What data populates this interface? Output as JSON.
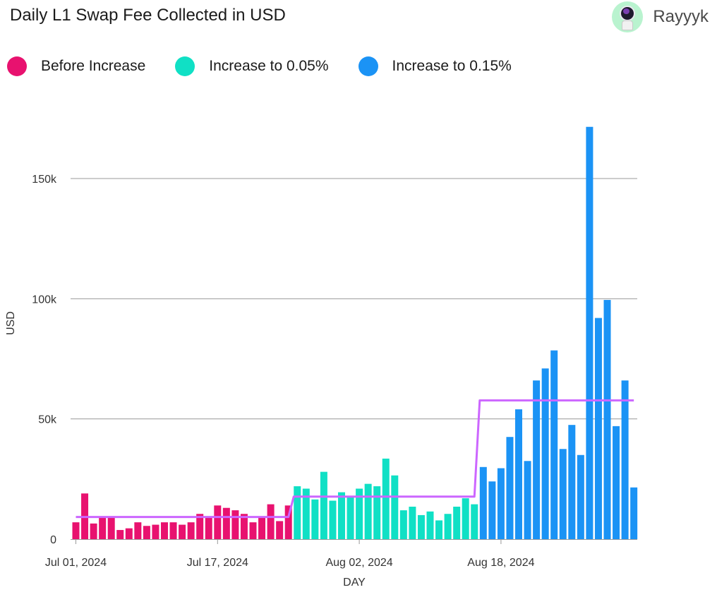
{
  "header": {
    "title": "Daily L1 Swap Fee Collected in USD",
    "author": "Rayyyk",
    "avatar_icon": "astronaut-avatar-icon"
  },
  "chart_data": {
    "type": "bar",
    "title": "Daily L1 Swap Fee Collected in USD",
    "xlabel": "DAY",
    "ylabel": "USD",
    "ylim": [
      0,
      170000
    ],
    "y_ticks": [
      0,
      50000,
      100000,
      150000
    ],
    "y_tick_labels": [
      "0",
      "50k",
      "100k",
      "150k"
    ],
    "x_ticks": [
      "2024-07-01",
      "2024-07-17",
      "2024-08-02",
      "2024-08-18"
    ],
    "x_tick_labels": [
      "Jul 01, 2024",
      "Jul 17, 2024",
      "Aug 02, 2024",
      "Aug 18, 2024"
    ],
    "x_start": "2024-07-01",
    "grid": true,
    "legend_position": "top-left",
    "series": [
      {
        "name": "Before Increase",
        "color": "#e8126f",
        "start_date": "2024-07-01",
        "values": [
          7000,
          19000,
          6500,
          9500,
          9500,
          3800,
          4500,
          7000,
          5500,
          6000,
          7000,
          7000,
          6000,
          7000,
          10500,
          9000,
          14000,
          13000,
          12000,
          10500,
          7000,
          9000,
          14500,
          7500,
          14000
        ]
      },
      {
        "name": "Increase to 0.05%",
        "color": "#10e0c5",
        "start_date": "2024-07-26",
        "values": [
          22000,
          21000,
          16500,
          28000,
          16000,
          19500,
          18000,
          21000,
          23000,
          22000,
          33500,
          26500,
          12000,
          13500,
          10000,
          11500,
          7800,
          10500,
          13500,
          17000,
          14500
        ]
      },
      {
        "name": "Increase to 0.15%",
        "color": "#1b93f5",
        "start_date": "2024-08-16",
        "values": [
          30000,
          24000,
          29500,
          42500,
          54000,
          32500,
          66000,
          71000,
          78500,
          37500,
          47500,
          35000,
          171500,
          92000,
          99500,
          47000,
          66000,
          21500
        ]
      }
    ],
    "average_line": {
      "color": "#cc66ff",
      "segments": [
        {
          "from": "2024-07-01",
          "to": "2024-07-25",
          "value": 9200
        },
        {
          "from": "2024-07-26",
          "to": "2024-08-15",
          "value": 17700
        },
        {
          "from": "2024-08-16",
          "to": "2024-09-02",
          "value": 57700
        }
      ]
    }
  }
}
